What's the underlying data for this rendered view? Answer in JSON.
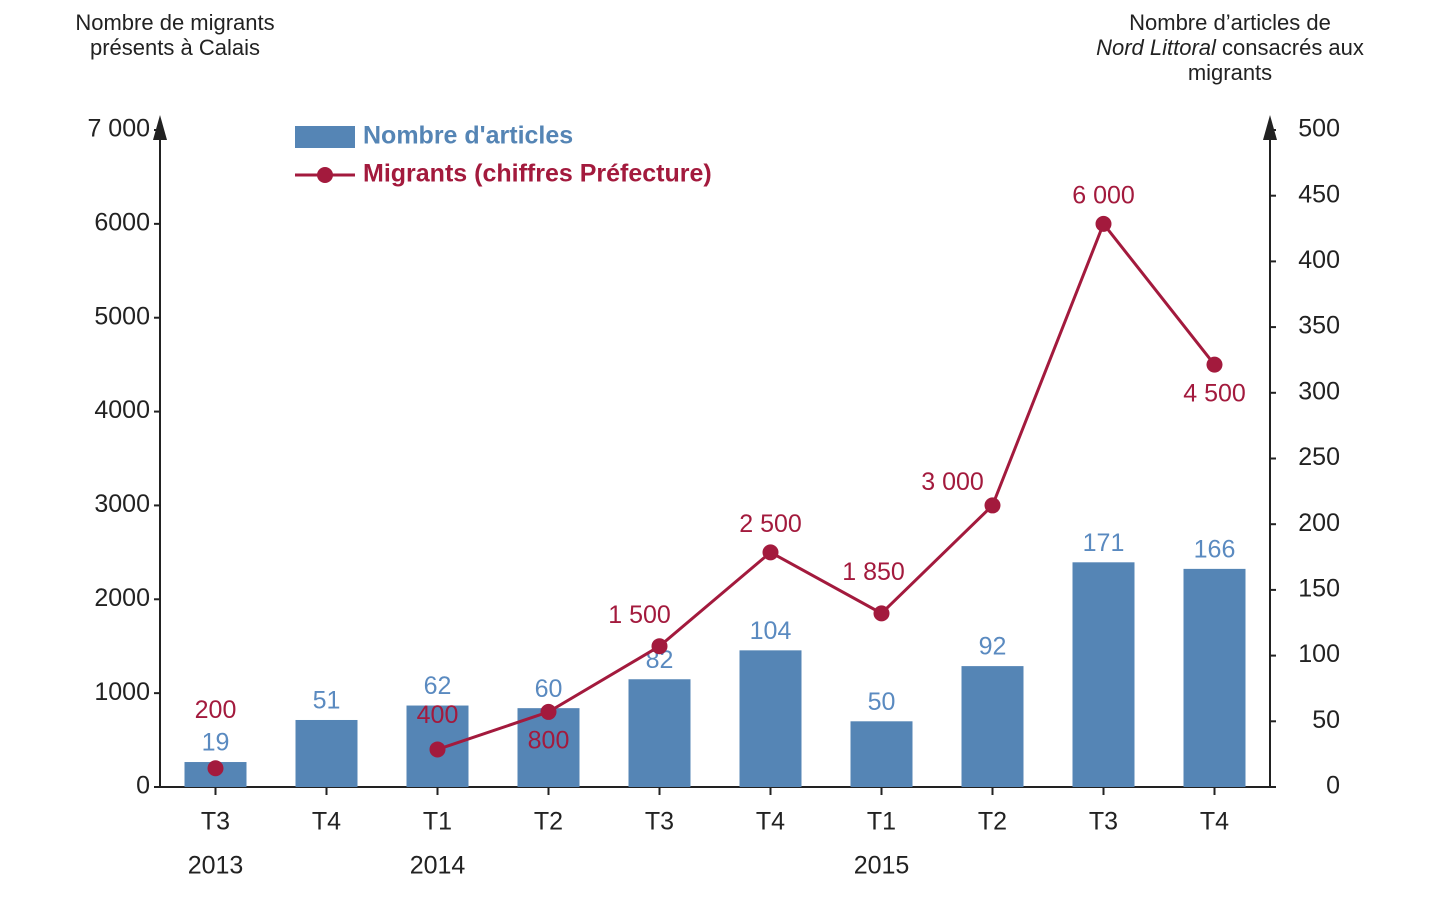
{
  "chart_data": {
    "type": "bar_line",
    "y_label": "Nombre de migrants présents à Calais",
    "y2_label": [
      "Nombre d’articles de",
      "Nord Littoral",
      "consacrés aux migrants"
    ],
    "categories": [
      "T3",
      "T4",
      "T1",
      "T2",
      "T3",
      "T4",
      "T1",
      "T2",
      "T3",
      "T4"
    ],
    "year_labels": [
      "2013",
      null,
      "2014",
      null,
      null,
      null,
      "2015",
      null,
      null,
      null
    ],
    "ylim": [
      0,
      7000
    ],
    "yticks": [
      0,
      1000,
      2000,
      3000,
      4000,
      5000,
      6000,
      {
        "value": 7000,
        "label": "7 000"
      }
    ],
    "y2lim": [
      0,
      500
    ],
    "y2ticks": [
      0,
      50,
      100,
      150,
      200,
      250,
      300,
      350,
      400,
      450,
      500
    ],
    "series": [
      {
        "name": "Nombre d'articles",
        "type": "bar",
        "axis": "y2",
        "color": "#5585b5",
        "values": [
          19,
          51,
          62,
          60,
          82,
          104,
          50,
          92,
          171,
          166
        ]
      },
      {
        "name": "Migrants (chiffres Préfecture)",
        "type": "line",
        "color": "#a31a3d",
        "values": [
          200,
          null,
          400,
          800,
          1500,
          2500,
          1850,
          3000,
          6000,
          4500
        ],
        "value_labels": [
          "200",
          null,
          "400",
          "800",
          "1 500",
          "2 500",
          "1 850",
          "3 000",
          "6 000",
          "4 500"
        ]
      }
    ]
  }
}
